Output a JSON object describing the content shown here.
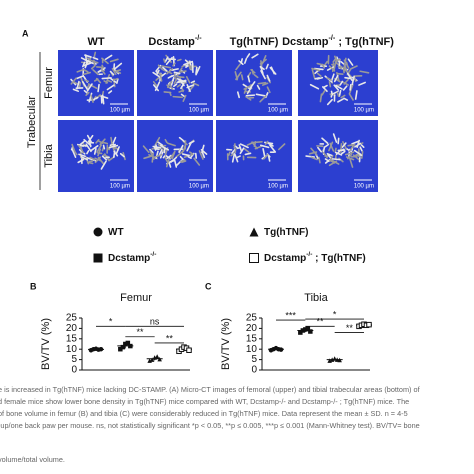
{
  "panel_a": {
    "label": "A",
    "columns": [
      {
        "text": "WT"
      },
      {
        "text": "Dcstamp",
        "sup": "-/-"
      },
      {
        "text": "Tg(hTNF)"
      },
      {
        "text": "Dcstamp",
        "sup": "-/-",
        "suffix": " ; Tg(hTNF)"
      }
    ],
    "group_label": "Trabecular",
    "rows": [
      "Femur",
      "Tibia"
    ],
    "scale_bar": "100 µm"
  },
  "legend": [
    {
      "text": "WT",
      "marker": "circle"
    },
    {
      "text": "Tg(hTNF)",
      "marker": "triangle"
    },
    {
      "text": "Dcstamp",
      "sup": "-/-",
      "marker": "square"
    },
    {
      "text": "Dcstamp",
      "sup": "-/-",
      "suffix": " ; Tg(hTNF)",
      "marker": "open-square"
    }
  ],
  "charts": [
    {
      "label": "B",
      "type": "scatter",
      "title": "Femur",
      "ylabel": "BV/TV (%)",
      "ylim": [
        0,
        25
      ],
      "yticks": [
        0,
        5,
        10,
        15,
        20,
        25
      ],
      "markers": [
        "circle",
        "square",
        "triangle",
        "open-square"
      ],
      "groups": [
        {
          "values": [
            9.5,
            10,
            10.2,
            9.8,
            10
          ],
          "mean": 9.9,
          "sd": 0.3
        },
        {
          "values": [
            10,
            11,
            12.5,
            13,
            11.5
          ],
          "mean": 11.6,
          "sd": 1.2
        },
        {
          "values": [
            4.5,
            5,
            6,
            6.5,
            5.2
          ],
          "mean": 5.4,
          "sd": 0.8
        },
        {
          "values": [
            9,
            10,
            11,
            10.5,
            9.5
          ],
          "mean": 10,
          "sd": 0.8
        }
      ],
      "significance": [
        {
          "label": "*",
          "from": 0,
          "to": 1,
          "y": 21
        },
        {
          "label": "ns",
          "from": 1,
          "to": 3,
          "y": 21
        },
        {
          "label": "**",
          "from": 1,
          "to": 2,
          "y": 16
        },
        {
          "label": "**",
          "from": 2,
          "to": 3,
          "y": 13
        }
      ]
    },
    {
      "label": "C",
      "type": "scatter",
      "title": "Tibia",
      "ylabel": "BV/TV (%)",
      "ylim": [
        0,
        25
      ],
      "yticks": [
        0,
        5,
        10,
        15,
        20,
        25
      ],
      "markers": [
        "circle",
        "square",
        "triangle",
        "open-square"
      ],
      "groups": [
        {
          "values": [
            9.5,
            10,
            10.5,
            10,
            9.8
          ],
          "mean": 10,
          "sd": 0.4
        },
        {
          "values": [
            18,
            19,
            19.5,
            20,
            18.5
          ],
          "mean": 19,
          "sd": 0.8
        },
        {
          "values": [
            4.5,
            5,
            5.5,
            5,
            4.8
          ],
          "mean": 5,
          "sd": 0.4
        },
        {
          "values": [
            21,
            21.5,
            22,
            21.5,
            21.8
          ],
          "mean": 21.6,
          "sd": 0.4
        }
      ],
      "significance": [
        {
          "label": "***",
          "from": 0,
          "to": 1,
          "y": 24
        },
        {
          "label": "*",
          "from": 1,
          "to": 3,
          "y": 24.5
        },
        {
          "label": "**",
          "from": 1,
          "to": 2,
          "y": 21
        },
        {
          "label": "**",
          "from": 2,
          "to": 3,
          "y": 18
        }
      ]
    }
  ],
  "caption": [
    "e is increased in Tg(hTNF) mice lacking DC-STAMP. (A) Micro-CT images of femoral (upper) and tibial trabecular areas (bottom) of",
    "d female mice show lower bone density in Tg(hTNF) mice compared with WT, Dcstamp-/- and Dcstamp-/- ; Tg(hTNF) mice. The",
    "of bone volume in femur (B) and tibia (C) were considerably reduced in Tg(hTNF) mice. Data represent the mean ± SD. n = 4-5",
    "-up/one back paw per mouse. ns, not statistically significant *p < 0.05, **p ≤ 0.005, ***p ≤ 0.001 (Mann-Whitney test). BV/TV= bone",
    "volume/total volume."
  ]
}
